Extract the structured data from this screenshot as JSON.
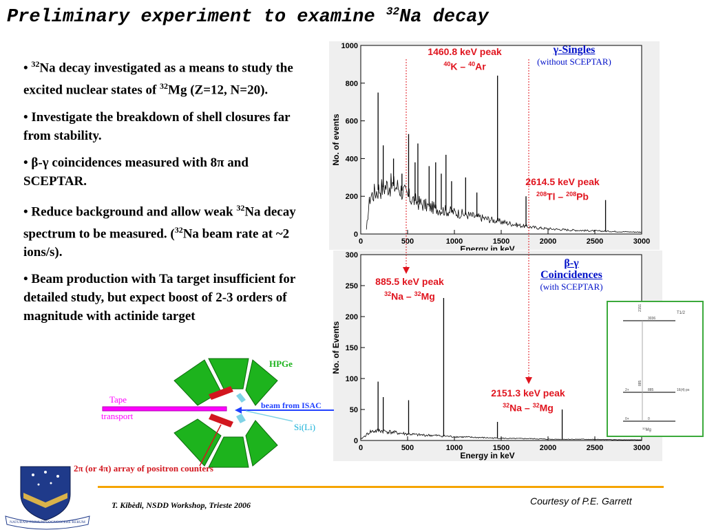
{
  "title": {
    "text": "Preliminary experiment to examine",
    "isotope_mass": "32",
    "isotope_rest": "Na decay"
  },
  "bullets": [
    {
      "id": "b1"
    },
    {
      "id": "b2",
      "text": "• Investigate the breakdown of shell closures far from stability."
    },
    {
      "id": "b3"
    },
    {
      "id": "b4"
    },
    {
      "id": "b5",
      "text": "• Beam production with Ta target insufficient for detailed study, but expect boost of 2-3 orders of magnitude with actinide target"
    }
  ],
  "chart_data": [
    {
      "type": "line",
      "title": "γ-Singles",
      "subtitle": "(without SCEPTAR)",
      "xlabel": "Energy in keV",
      "ylabel": "No. of events",
      "xlim": [
        0,
        3000
      ],
      "ylim": [
        0,
        1000
      ],
      "xticks": [
        0,
        500,
        1000,
        1500,
        2000,
        2500,
        3000
      ],
      "yticks": [
        0,
        200,
        400,
        600,
        800,
        1000
      ],
      "background_x": [
        60,
        80,
        100,
        150,
        200,
        300,
        400,
        500,
        600,
        700,
        800,
        900,
        1000,
        1100,
        1200,
        1300,
        1400,
        1500,
        1600,
        1700,
        1800,
        1900,
        2000,
        2200,
        2400,
        2600,
        2800,
        3000
      ],
      "background_y": [
        20,
        120,
        200,
        220,
        240,
        260,
        250,
        200,
        170,
        150,
        135,
        125,
        115,
        105,
        95,
        85,
        75,
        65,
        55,
        45,
        38,
        32,
        28,
        22,
        18,
        15,
        12,
        10
      ],
      "peaks_x": [
        185,
        240,
        350,
        440,
        511,
        580,
        610,
        730,
        800,
        860,
        910,
        970,
        1120,
        1240,
        1460.8,
        1765,
        2614.5
      ],
      "peaks_y": [
        750,
        470,
        400,
        320,
        530,
        380,
        480,
        360,
        380,
        320,
        420,
        280,
        300,
        220,
        840,
        200,
        180
      ],
      "annotations": [
        {
          "energy": "1460.8 keV peak",
          "parent_mass": "40",
          "parent": "K",
          "daughter_mass": "40",
          "daughter": "Ar"
        },
        {
          "energy": "2614.5 keV peak",
          "parent_mass": "208",
          "parent": "Tl",
          "daughter_mass": "208",
          "daughter": "Pb"
        }
      ]
    },
    {
      "type": "line",
      "title": "β-γ",
      "title2": "Coincidences",
      "subtitle": "(with SCEPTAR)",
      "xlabel": "Energy in keV",
      "ylabel": "No. of Events",
      "xlim": [
        0,
        3000
      ],
      "ylim": [
        0,
        300
      ],
      "xticks": [
        0,
        500,
        1000,
        1500,
        2000,
        2500,
        3000
      ],
      "yticks": [
        0,
        50,
        100,
        150,
        200,
        250,
        300
      ],
      "background_x": [
        0,
        100,
        200,
        400,
        600,
        800,
        1000,
        1200,
        1400,
        1600,
        1800,
        2000,
        2400,
        2800,
        3000
      ],
      "background_y": [
        2,
        14,
        16,
        12,
        9,
        8,
        6,
        5,
        4,
        3,
        3,
        2,
        2,
        1,
        1
      ],
      "peaks_x": [
        185,
        240,
        511,
        885.5,
        1460,
        2151.3
      ],
      "peaks_y": [
        95,
        70,
        65,
        230,
        30,
        50
      ],
      "annotations": [
        {
          "energy": "885.5 keV peak",
          "parent_mass": "32",
          "parent": "Na",
          "daughter_mass": "32",
          "daughter": "Mg"
        },
        {
          "energy": "2151.3 keV peak",
          "parent_mass": "32",
          "parent": "Na",
          "daughter_mass": "32",
          "daughter": "Mg"
        }
      ]
    }
  ],
  "level_scheme": {
    "halflife_header": "T1/2",
    "levels": [
      {
        "spin": "",
        "energy": "3036",
        "halflife": ""
      },
      {
        "spin": "2+",
        "energy": "885",
        "halflife": "16(4) ps"
      },
      {
        "spin": "0+",
        "energy": "0",
        "halflife": ""
      }
    ],
    "gammas": [
      "2151",
      "885"
    ],
    "nucleus_mass": "32",
    "nucleus": "Mg"
  },
  "detector": {
    "hpge": "HPGe",
    "tape": "Tape",
    "transport": "transport",
    "beam": "beam from ISAC",
    "sili": "Si(Li)",
    "array_caption": "2π (or 4π) array of positron counters"
  },
  "footer": {
    "left": "T. Kibèdi, NSDD Workshop, Trieste 2006",
    "right": "Courtesy of P.E. Garrett",
    "logo_motto": "NATURAM PRIMUM COGNOSCERE RERUM"
  },
  "colors": {
    "accent": "#e0141e",
    "blue": "#0010c8",
    "footer_rule": "#f5a400",
    "hpge": "#1db31d",
    "tape": "#ff00ff"
  }
}
